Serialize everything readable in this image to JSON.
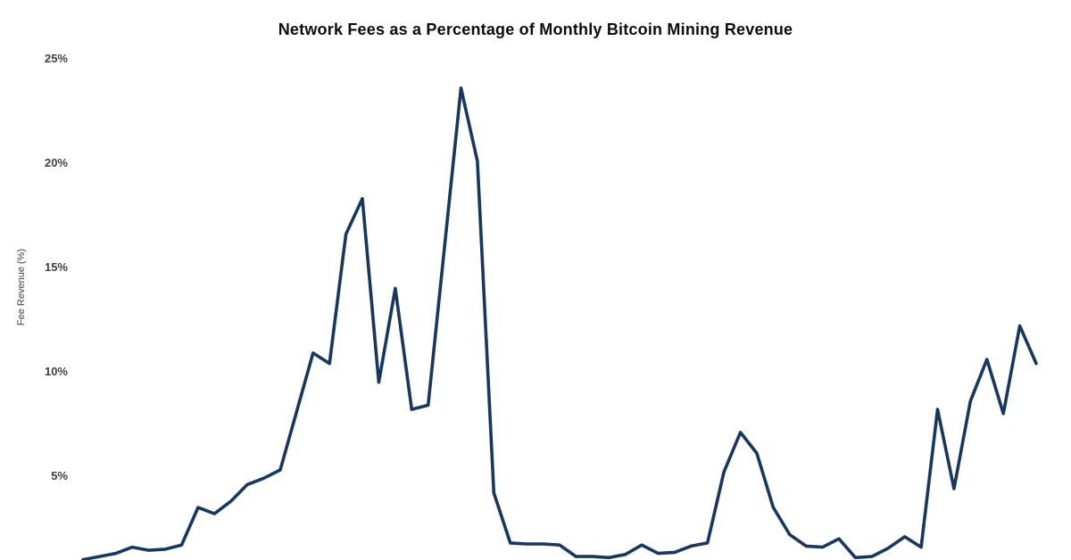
{
  "title": "Network Fees as a Percentage of Monthly Bitcoin Mining Revenue",
  "colors": {
    "line": "#17375e",
    "title_text": "#0d0d0d",
    "axis_text": "#3f3f3f",
    "background": "#ffffff"
  },
  "chart_data": {
    "type": "line",
    "title": "Network Fees as a Percentage of Monthly Bitcoin Mining Revenue",
    "xlabel": "",
    "ylabel": "Fee Revenue (%)",
    "ylim": [
      0,
      25
    ],
    "y_tick_interval": 5,
    "y_ticks": [
      {
        "label": "25%",
        "value": 25
      },
      {
        "label": "20%",
        "value": 20
      },
      {
        "label": "15%",
        "value": 15
      },
      {
        "label": "10%",
        "value": 10
      },
      {
        "label": "5%",
        "value": 5
      }
    ],
    "grid": false,
    "legend_position": "none",
    "x_tick_labels_visible": false,
    "line_color": "#17375e",
    "series": [
      {
        "name": "Fee Revenue (%)",
        "unit": "percent of monthly mining revenue",
        "values": [
          1.0,
          1.15,
          1.3,
          1.6,
          1.45,
          1.5,
          1.7,
          3.5,
          3.2,
          3.8,
          4.6,
          4.9,
          5.3,
          8.1,
          10.9,
          10.4,
          16.6,
          18.3,
          9.5,
          14.0,
          8.2,
          8.4,
          16.0,
          23.6,
          20.1,
          4.2,
          1.8,
          1.75,
          1.75,
          1.7,
          1.15,
          1.15,
          1.1,
          1.25,
          1.7,
          1.3,
          1.35,
          1.65,
          1.8,
          5.2,
          7.1,
          6.1,
          3.5,
          2.2,
          1.65,
          1.6,
          2.0,
          1.1,
          1.15,
          1.55,
          2.1,
          1.6,
          8.2,
          4.4,
          8.6,
          10.6,
          8.0,
          12.2,
          10.4
        ]
      }
    ]
  }
}
